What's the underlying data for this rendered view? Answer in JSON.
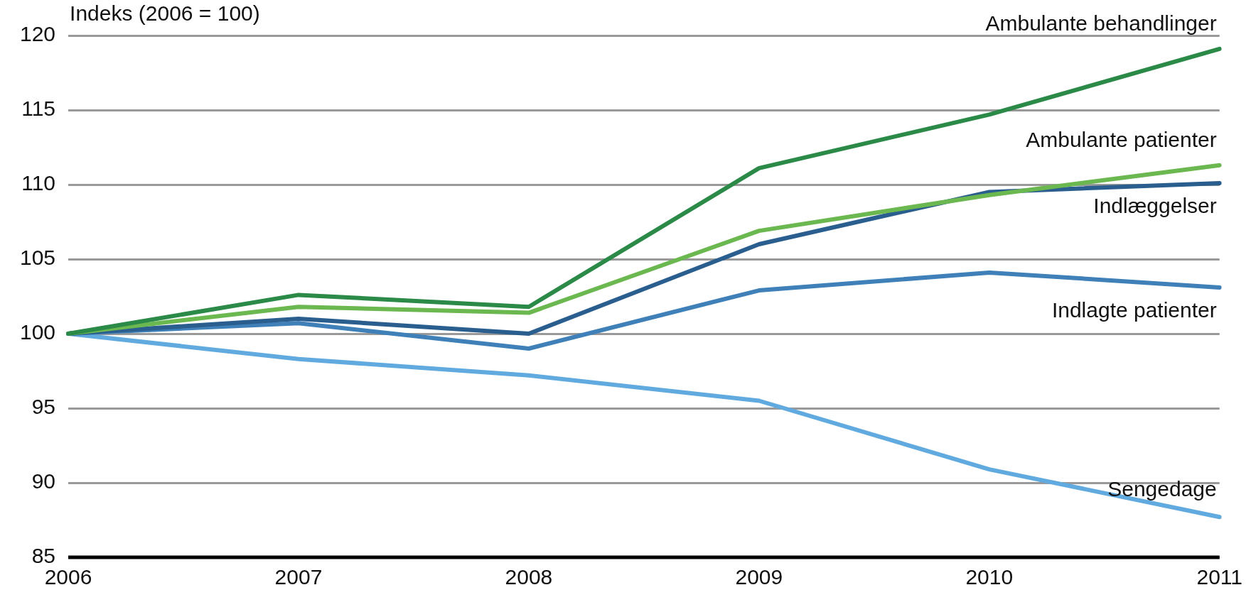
{
  "chart_data": {
    "type": "line",
    "ylabel": "Indeks (2006 = 100)",
    "categories": [
      "2006",
      "2007",
      "2008",
      "2009",
      "2010",
      "2011"
    ],
    "ylim": [
      85,
      120
    ],
    "yticks": [
      85,
      90,
      95,
      100,
      105,
      110,
      115,
      120
    ],
    "grid": "y",
    "legend": false,
    "marker": "none",
    "line_style": "solid",
    "series": [
      {
        "name": "Ambulante behandlinger",
        "color": "#2b8a48",
        "values": [
          100,
          102.6,
          101.8,
          111.1,
          114.7,
          119.1
        ]
      },
      {
        "name": "Ambulante patienter",
        "color": "#6cb850",
        "values": [
          100,
          101.8,
          101.4,
          106.9,
          109.3,
          111.3
        ]
      },
      {
        "name": "Indlæggelser",
        "color": "#2a5e8e",
        "values": [
          100,
          101.0,
          100.0,
          106.0,
          109.5,
          110.1
        ]
      },
      {
        "name": "Indlagte patienter",
        "color": "#3f80b9",
        "values": [
          100,
          100.7,
          99.0,
          102.9,
          104.1,
          103.1
        ]
      },
      {
        "name": "Sengedage",
        "color": "#61aadf",
        "values": [
          100,
          98.3,
          97.2,
          95.5,
          90.9,
          87.7
        ]
      }
    ]
  }
}
